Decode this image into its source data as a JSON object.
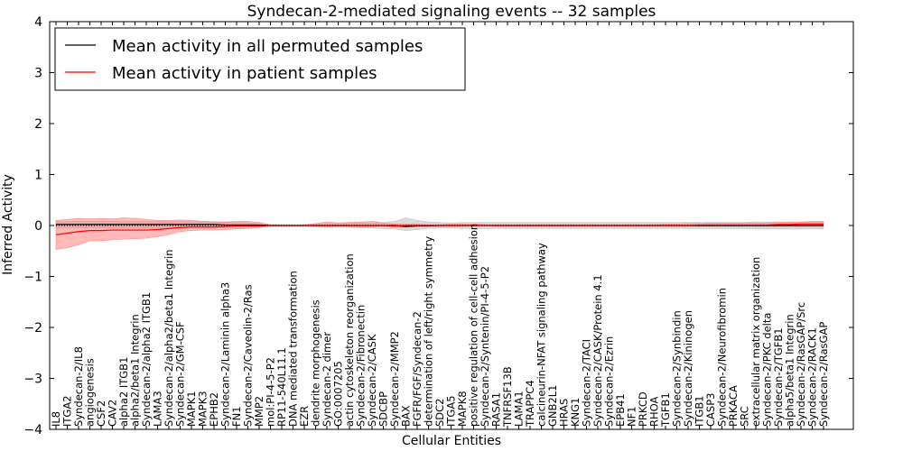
{
  "chart_data": {
    "type": "line",
    "title": "Syndecan-2-mediated signaling events -- 32 samples",
    "xlabel": "Cellular Entities",
    "ylabel": "Inferred Activity",
    "ylim": [
      -4,
      4
    ],
    "yticks": [
      -4,
      -3,
      -2,
      -1,
      0,
      1,
      2,
      3,
      4
    ],
    "grid": false,
    "legend_position": "top-left",
    "colors": {
      "permuted": "#000000",
      "patient": "#ff0000",
      "permuted_band": "#bbbbbb",
      "patient_band": "#ff8080"
    },
    "categories": [
      "IL8",
      "ITGA2",
      "Syndecan-2/IL8",
      "angiogenesis",
      "CSF2",
      "CAV2",
      "alpha2 ITGB1",
      "alpha2/beta1 Integrin",
      "Syndecan-2/alpha2 ITGB1",
      "LAMA3",
      "Syndecan-2/alpha2/beta1 Integrin",
      "Syndecan-2/GM-CSF",
      "MAPK1",
      "MAPK3",
      "EPHB2",
      "Syndecan-2/Laminin alpha3",
      "FN1",
      "Syndecan-2/Caveolin-2/Ras",
      "MMP2",
      "mol:PI-4-5-P2",
      "RP11-540L11.1",
      "DNA mediated transformation",
      "EZR",
      "dendrite morphogenesis",
      "Syndecan-2 dimer",
      "GO:0007205",
      "actin cytoskeleton reorganization",
      "Syndecan-2/Fibronectin",
      "Syndecan-2/CASK",
      "SDCBP",
      "Syndecan-2/MMP2",
      "BAX",
      "FGFR/FGF/Syndecan-2",
      "determination of left/right symmetry",
      "SDC2",
      "ITGA5",
      "MAPK8",
      "positive regulation of cell-cell adhesion",
      "Syndecan-2/Syntenin/PI-4-5-P2",
      "RASA1",
      "TNFRSF13B",
      "LAMA1",
      "TRAPPC4",
      "calcineurin-NFAT signaling pathway",
      "GNB2L1",
      "HRAS",
      "KNG1",
      "Syndecan-2/TACI",
      "Syndecan-2/CASK/Protein 4.1",
      "Syndecan-2/Ezrin",
      "EPB41",
      "NF1",
      "PRKCD",
      "RHOA",
      "TGFB1",
      "Syndecan-2/Synbindin",
      "Syndecan-2/Kininogen",
      "ITGB1",
      "CASP3",
      "Syndecan-2/Neurofibromin",
      "PRKACA",
      "SRC",
      "extracellular matrix organization",
      "Syndecan-2/PKC delta",
      "Syndecan-2/TGFB1",
      "alpha5/beta1 Integrin",
      "Syndecan-2/RasGAP/Src",
      "Syndecan-2/RACK1",
      "Syndecan-2/RasGAP"
    ],
    "series": [
      {
        "name": "Mean activity in all permuted samples",
        "values": [
          0.02,
          0.02,
          0.02,
          0.02,
          0.02,
          0.02,
          0.02,
          0.02,
          0.02,
          0.02,
          0.02,
          0.02,
          0.02,
          0.02,
          0.02,
          0.01,
          0.01,
          0.01,
          0.01,
          0.0,
          0.0,
          0.0,
          0.0,
          0.0,
          0.0,
          0.0,
          0.0,
          0.0,
          0.0,
          0.0,
          0.0,
          -0.02,
          -0.01,
          -0.01,
          0.0,
          0.0,
          0.0,
          0.0,
          0.0,
          0.0,
          0.0,
          0.0,
          0.0,
          0.0,
          0.0,
          0.0,
          0.0,
          0.0,
          0.0,
          0.0,
          0.0,
          0.0,
          0.0,
          0.0,
          0.0,
          0.0,
          0.0,
          0.0,
          0.0,
          0.0,
          0.0,
          0.0,
          0.0,
          0.0,
          0.0,
          0.0,
          0.0,
          0.0,
          0.0
        ],
        "lower": [
          -0.05,
          -0.05,
          -0.05,
          -0.05,
          -0.05,
          -0.05,
          -0.05,
          -0.05,
          -0.05,
          -0.05,
          -0.05,
          -0.05,
          -0.05,
          -0.05,
          -0.05,
          -0.04,
          -0.04,
          -0.03,
          -0.03,
          -0.02,
          -0.02,
          -0.02,
          -0.02,
          -0.03,
          -0.04,
          -0.04,
          -0.04,
          -0.05,
          -0.05,
          -0.06,
          -0.07,
          -0.1,
          -0.08,
          -0.06,
          -0.05,
          -0.05,
          -0.06,
          -0.06,
          -0.06,
          -0.06,
          -0.06,
          -0.06,
          -0.06,
          -0.06,
          -0.06,
          -0.06,
          -0.06,
          -0.06,
          -0.06,
          -0.06,
          -0.06,
          -0.06,
          -0.06,
          -0.06,
          -0.06,
          -0.06,
          -0.06,
          -0.06,
          -0.06,
          -0.06,
          -0.06,
          -0.06,
          -0.07,
          -0.07,
          -0.07,
          -0.07,
          -0.07,
          -0.07,
          -0.07
        ],
        "upper": [
          0.08,
          0.08,
          0.08,
          0.08,
          0.08,
          0.08,
          0.08,
          0.08,
          0.08,
          0.08,
          0.08,
          0.08,
          0.08,
          0.08,
          0.08,
          0.07,
          0.06,
          0.05,
          0.04,
          0.02,
          0.02,
          0.02,
          0.02,
          0.03,
          0.04,
          0.04,
          0.05,
          0.05,
          0.05,
          0.06,
          0.08,
          0.15,
          0.1,
          0.07,
          0.06,
          0.05,
          0.06,
          0.06,
          0.06,
          0.06,
          0.06,
          0.06,
          0.06,
          0.06,
          0.06,
          0.06,
          0.06,
          0.06,
          0.06,
          0.06,
          0.06,
          0.06,
          0.06,
          0.06,
          0.06,
          0.06,
          0.06,
          0.06,
          0.06,
          0.06,
          0.06,
          0.06,
          0.07,
          0.07,
          0.07,
          0.07,
          0.07,
          0.07,
          0.07
        ]
      },
      {
        "name": "Mean activity in patient samples",
        "values": [
          -0.18,
          -0.15,
          -0.12,
          -0.1,
          -0.1,
          -0.09,
          -0.09,
          -0.09,
          -0.09,
          -0.08,
          -0.06,
          -0.04,
          -0.03,
          -0.03,
          -0.03,
          -0.02,
          -0.01,
          -0.01,
          -0.01,
          0.0,
          0.0,
          0.0,
          0.0,
          0.0,
          0.0,
          0.0,
          0.0,
          0.0,
          0.0,
          0.0,
          -0.01,
          0.0,
          0.0,
          0.0,
          0.0,
          0.0,
          0.0,
          0.0,
          0.0,
          0.0,
          0.0,
          0.0,
          0.0,
          0.0,
          0.0,
          0.0,
          0.0,
          0.0,
          0.0,
          0.0,
          0.0,
          0.0,
          0.0,
          0.0,
          0.0,
          0.0,
          0.0,
          0.01,
          0.01,
          0.01,
          0.01,
          0.01,
          0.01,
          0.01,
          0.02,
          0.02,
          0.03,
          0.03,
          0.03
        ],
        "lower": [
          -0.47,
          -0.44,
          -0.38,
          -0.3,
          -0.3,
          -0.28,
          -0.27,
          -0.26,
          -0.25,
          -0.22,
          -0.18,
          -0.12,
          -0.1,
          -0.09,
          -0.09,
          -0.08,
          -0.07,
          -0.06,
          -0.04,
          0.0,
          0.0,
          0.0,
          0.0,
          -0.01,
          -0.02,
          -0.01,
          -0.02,
          -0.03,
          -0.03,
          -0.02,
          -0.04,
          -0.03,
          -0.02,
          -0.01,
          -0.01,
          -0.01,
          -0.01,
          -0.01,
          0.0,
          -0.01,
          -0.01,
          -0.01,
          -0.01,
          -0.01,
          -0.01,
          -0.01,
          -0.01,
          -0.01,
          -0.01,
          -0.01,
          -0.01,
          -0.01,
          -0.01,
          -0.01,
          -0.01,
          -0.01,
          -0.02,
          -0.02,
          -0.02,
          -0.02,
          -0.02,
          -0.02,
          -0.02,
          -0.02,
          -0.02,
          -0.02,
          -0.02,
          -0.02,
          -0.02
        ],
        "upper": [
          0.1,
          0.12,
          0.14,
          0.13,
          0.14,
          0.13,
          0.15,
          0.14,
          0.12,
          0.1,
          0.1,
          0.11,
          0.1,
          0.08,
          0.06,
          0.07,
          0.08,
          0.08,
          0.06,
          0.02,
          0.01,
          0.01,
          0.01,
          0.04,
          0.07,
          0.05,
          0.06,
          0.07,
          0.08,
          0.05,
          0.03,
          0.03,
          0.03,
          0.02,
          0.02,
          0.03,
          0.03,
          0.03,
          0.02,
          0.02,
          0.02,
          0.02,
          0.02,
          0.02,
          0.02,
          0.02,
          0.02,
          0.02,
          0.02,
          0.02,
          0.02,
          0.02,
          0.02,
          0.02,
          0.03,
          0.03,
          0.04,
          0.04,
          0.05,
          0.05,
          0.05,
          0.05,
          0.05,
          0.05,
          0.06,
          0.06,
          0.07,
          0.08,
          0.08
        ]
      }
    ]
  }
}
